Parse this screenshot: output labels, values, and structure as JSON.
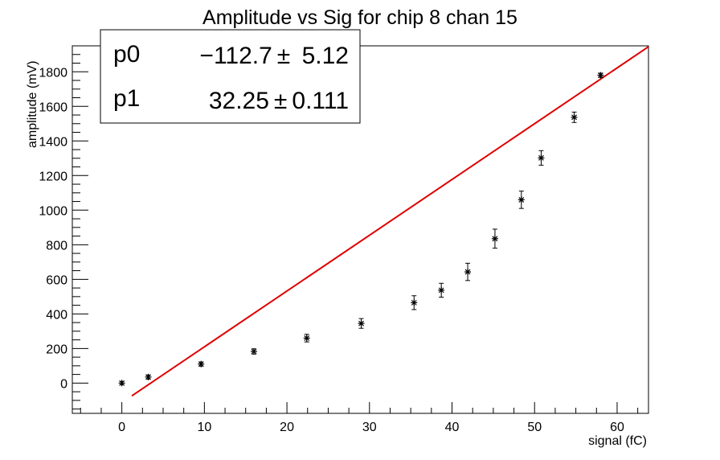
{
  "chart_data": {
    "type": "scatter",
    "title": "Amplitude vs Sig for chip 8 chan 15",
    "xlabel": "signal (fC)",
    "ylabel": "amplitude (mV)",
    "xlim": [
      -6,
      63.8
    ],
    "ylim": [
      -175,
      1950
    ],
    "x_ticks": [
      0,
      10,
      20,
      30,
      40,
      50,
      60
    ],
    "y_ticks": [
      0,
      200,
      400,
      600,
      800,
      1000,
      1200,
      1400,
      1600,
      1800
    ],
    "grid": false,
    "points": [
      {
        "x": 0.0,
        "y": 0,
        "err": 10
      },
      {
        "x": 3.2,
        "y": 35,
        "err": 12
      },
      {
        "x": 9.6,
        "y": 110,
        "err": 12
      },
      {
        "x": 16.0,
        "y": 183,
        "err": 15
      },
      {
        "x": 22.4,
        "y": 260,
        "err": 22
      },
      {
        "x": 29.0,
        "y": 345,
        "err": 28
      },
      {
        "x": 35.4,
        "y": 465,
        "err": 40
      },
      {
        "x": 38.7,
        "y": 537,
        "err": 40
      },
      {
        "x": 41.9,
        "y": 643,
        "err": 50
      },
      {
        "x": 45.2,
        "y": 835,
        "err": 55
      },
      {
        "x": 48.4,
        "y": 1060,
        "err": 50
      },
      {
        "x": 50.8,
        "y": 1302,
        "err": 42
      },
      {
        "x": 54.8,
        "y": 1537,
        "err": 30
      },
      {
        "x": 58.0,
        "y": 1780,
        "err": 12
      }
    ],
    "fit": {
      "color": "#e00000",
      "x_range": [
        1.2,
        63.8
      ],
      "p0": -112.7,
      "p1": 32.25
    },
    "stats": {
      "rows": [
        {
          "name": "p0",
          "value": "−112.7 ±  5.12"
        },
        {
          "name": "p1",
          "value": "32.25 ± 0.111"
        }
      ]
    }
  }
}
